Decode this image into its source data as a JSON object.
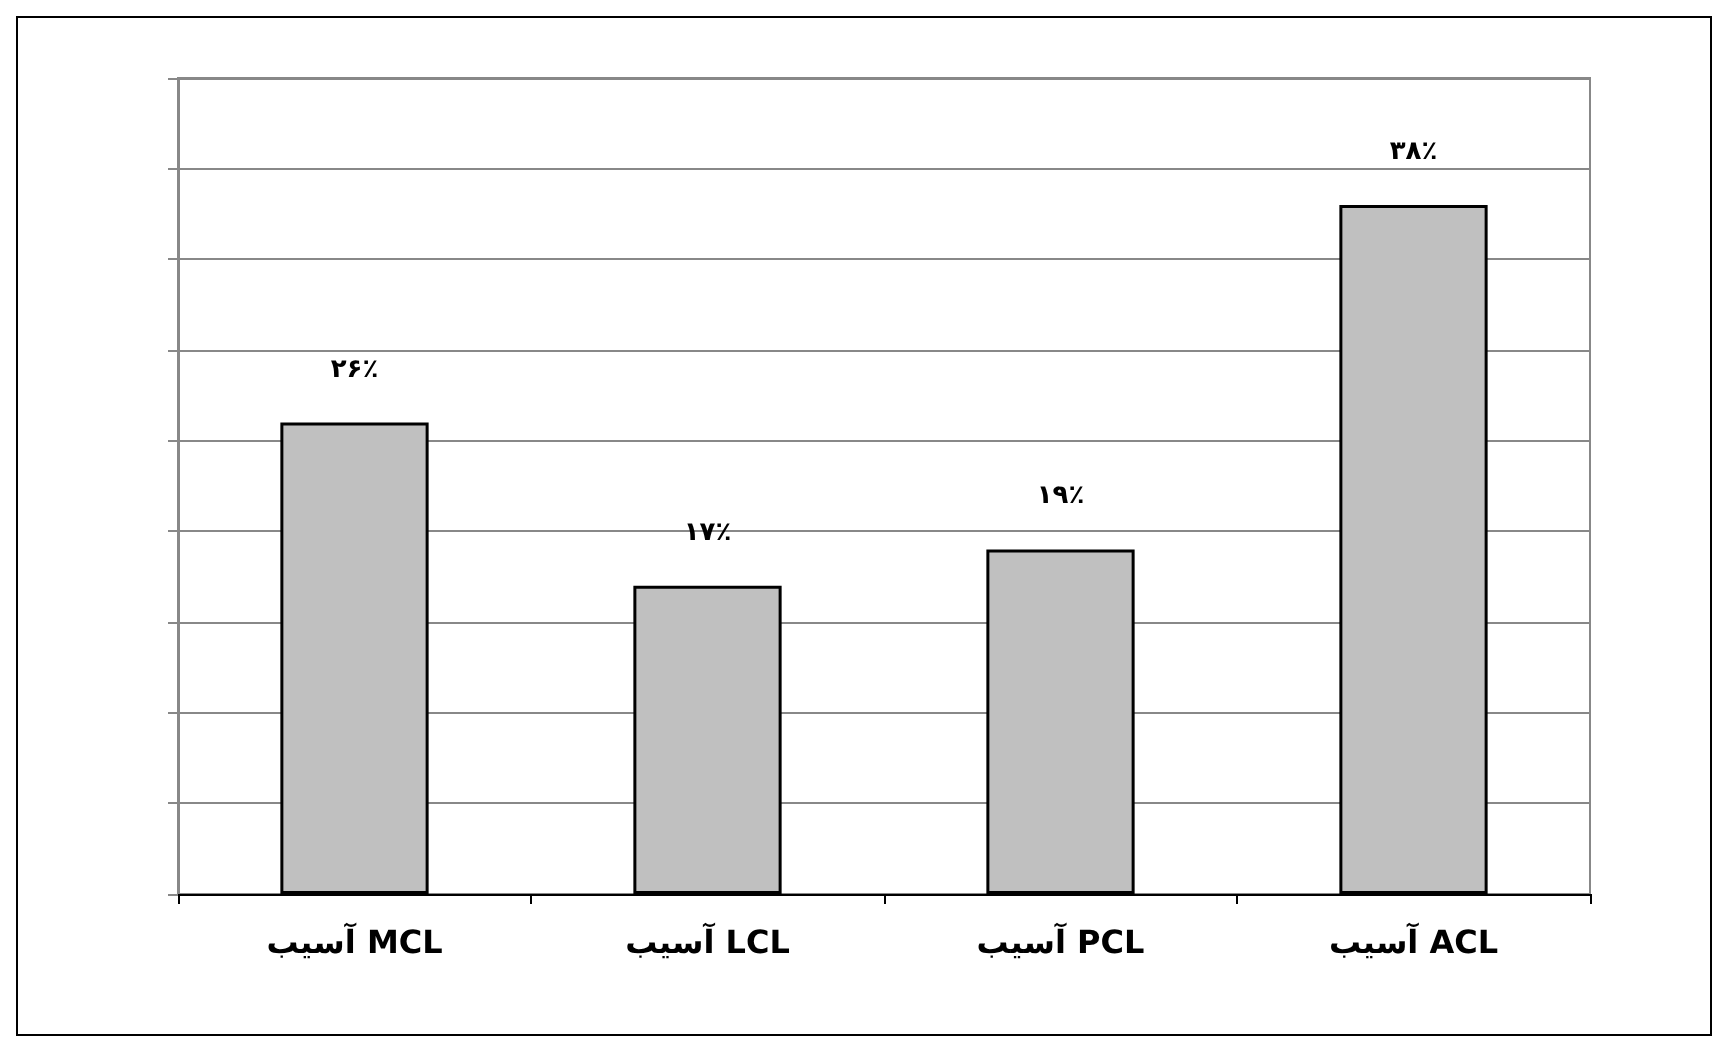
{
  "chart_data": {
    "type": "bar",
    "categories": [
      "آسیب MCL",
      "آسیب LCL",
      "آسیب PCL",
      "آسیب ACL"
    ],
    "values": [
      26,
      17,
      19,
      38
    ],
    "value_labels": [
      "۲۶٪",
      "۱۷٪",
      "۱۹٪",
      "۳۸٪"
    ],
    "color": "#c0c0c0",
    "ylim": [
      0,
      45
    ],
    "yticks": [
      {
        "value": 0,
        "label": null
      },
      {
        "value": 5,
        "label": null
      },
      {
        "value": 10,
        "label": null
      },
      {
        "value": 15,
        "label": null
      },
      {
        "value": 20,
        "label": null
      },
      {
        "value": 25,
        "label": null
      },
      {
        "value": 30,
        "label": null
      },
      {
        "value": 35,
        "label": null
      },
      {
        "value": 40,
        "label": null
      },
      {
        "value": 45,
        "label": null
      }
    ],
    "tick_labels": "x",
    "grid": "y"
  }
}
